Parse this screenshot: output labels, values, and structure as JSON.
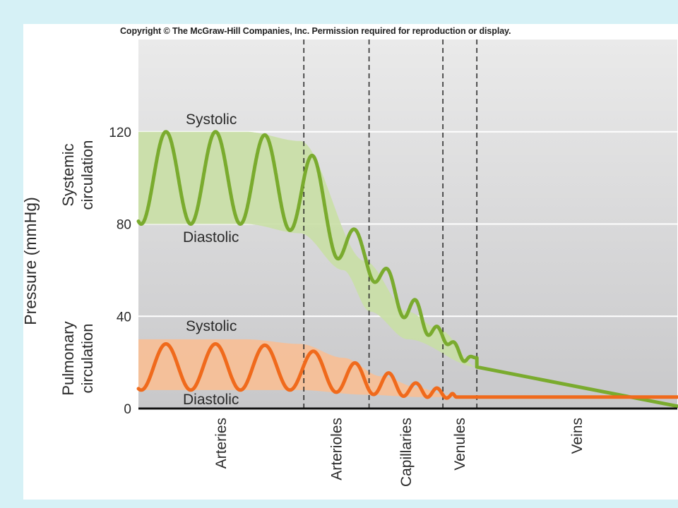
{
  "copyright": "Copyright © The McGraw-Hill Companies, Inc. Permission required for reproduction or display.",
  "chart_data": {
    "type": "line",
    "ylabel": "Pressure (mmHg)",
    "ylim": [
      0,
      160
    ],
    "yticks": [
      "0",
      "40",
      "80",
      "120"
    ],
    "ytick_values": [
      0,
      40,
      80,
      120
    ],
    "regions": [
      "Arteries",
      "Arterioles",
      "Capillaries",
      "Venules",
      "Veins"
    ],
    "region_bounds": [
      0,
      0.307,
      0.428,
      0.565,
      0.628,
      1.0
    ],
    "grid": true,
    "colors": {
      "systemic": "#7aab2e",
      "systemic_band": "#c9dfa5",
      "pulmonary": "#f06a1c",
      "pulmonary_band": "#f8bf95"
    },
    "systemic": {
      "label": "Systemic circulation",
      "label_lines": [
        "Systemic",
        "circulation"
      ],
      "systolic_label": "Systolic",
      "diastolic_label": "Diastolic",
      "band_upper": [
        [
          0,
          120
        ],
        [
          0.2,
          120
        ],
        [
          0.3,
          116
        ],
        [
          0.42,
          64
        ],
        [
          0.5,
          42
        ],
        [
          0.56,
          34
        ],
        [
          0.628,
          18
        ]
      ],
      "band_lower": [
        [
          0,
          80
        ],
        [
          0.2,
          80
        ],
        [
          0.3,
          76
        ],
        [
          0.38,
          60
        ],
        [
          0.43,
          42
        ],
        [
          0.5,
          30
        ],
        [
          0.628,
          18
        ]
      ],
      "pulse_centers": [
        [
          0,
          100
        ],
        [
          0.2,
          100
        ],
        [
          0.3,
          96
        ],
        [
          0.42,
          66
        ],
        [
          0.5,
          44
        ],
        [
          0.56,
          32
        ],
        [
          0.61,
          22
        ]
      ],
      "pulse_amplitudes": [
        [
          0,
          20
        ],
        [
          0.2,
          20
        ],
        [
          0.3,
          19
        ],
        [
          0.36,
          13
        ],
        [
          0.42,
          9
        ],
        [
          0.5,
          5
        ],
        [
          0.6,
          2
        ],
        [
          0.628,
          0
        ]
      ],
      "pulse_period": 0.092,
      "pulse_phase": 0.0,
      "veins": [
        [
          0.628,
          18
        ],
        [
          1.0,
          1
        ]
      ]
    },
    "pulmonary": {
      "label": "Pulmonary circulation",
      "label_lines": [
        "Pulmonary",
        "circulation"
      ],
      "systolic_label": "Systolic",
      "diastolic_label": "Diastolic",
      "band_upper": [
        [
          0,
          30
        ],
        [
          0.2,
          30
        ],
        [
          0.3,
          28
        ],
        [
          0.38,
          22
        ],
        [
          0.45,
          14
        ],
        [
          0.52,
          9
        ],
        [
          0.57,
          6
        ],
        [
          0.59,
          5
        ]
      ],
      "band_lower": [
        [
          0,
          8
        ],
        [
          0.2,
          8
        ],
        [
          0.3,
          8
        ],
        [
          0.42,
          6
        ],
        [
          0.52,
          5
        ],
        [
          0.59,
          5
        ]
      ],
      "pulse_centers": [
        [
          0,
          18
        ],
        [
          0.2,
          18
        ],
        [
          0.3,
          17
        ],
        [
          0.38,
          14
        ],
        [
          0.45,
          11
        ],
        [
          0.52,
          8
        ],
        [
          0.58,
          6
        ],
        [
          0.59,
          5
        ]
      ],
      "pulse_amplitudes": [
        [
          0,
          10
        ],
        [
          0.2,
          10
        ],
        [
          0.3,
          9
        ],
        [
          0.38,
          7
        ],
        [
          0.45,
          5
        ],
        [
          0.52,
          3
        ],
        [
          0.58,
          1.5
        ],
        [
          0.59,
          0
        ]
      ],
      "pulse_period": 0.092,
      "pulse_phase": 0.0,
      "veins": [
        [
          0.59,
          5
        ],
        [
          1.0,
          5
        ]
      ]
    }
  }
}
